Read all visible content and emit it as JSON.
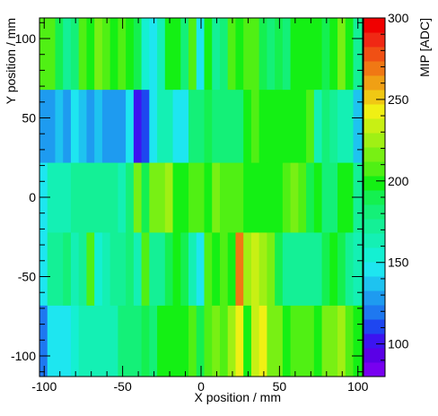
{
  "chart_data": {
    "type": "heatmap",
    "title": "",
    "xlabel": "X position / mm",
    "ylabel": "Y position / mm",
    "zlabel": "MIP [ADC]",
    "xlim": [
      -103,
      103
    ],
    "ylim": [
      -113,
      113
    ],
    "zlim": [
      80,
      300
    ],
    "x_ticks": [
      -100,
      -50,
      0,
      50,
      100
    ],
    "y_ticks": [
      -100,
      -50,
      0,
      50,
      100
    ],
    "z_ticks": [
      100,
      150,
      200,
      250,
      300
    ],
    "y_bands": [
      [
        -113,
        -68
      ],
      [
        -68,
        -22
      ],
      [
        -22,
        22
      ],
      [
        22,
        68
      ],
      [
        68,
        113
      ]
    ],
    "x_edges": [
      -103,
      -98,
      -93,
      -88,
      -83,
      -78,
      -73,
      -68,
      -63,
      -58,
      -53,
      -48,
      -43,
      -38,
      -33,
      -28,
      -23,
      -18,
      -13,
      -8,
      -3,
      2,
      7,
      12,
      17,
      22,
      27,
      32,
      37,
      42,
      47,
      52,
      57,
      62,
      67,
      72,
      77,
      82,
      87,
      92,
      97,
      103
    ],
    "palette": [
      "#7800f0",
      "#5a00e6",
      "#3c14f0",
      "#1e46f0",
      "#1e78f0",
      "#1e9bf0",
      "#1ec3f0",
      "#1ee6f0",
      "#14f0d2",
      "#14f0b4",
      "#14f096",
      "#14f078",
      "#14f050",
      "#14f014",
      "#50f014",
      "#78f014",
      "#a0f014",
      "#c8f014",
      "#f0f014",
      "#f0c814",
      "#f0a014",
      "#f07814",
      "#f05014",
      "#f02814",
      "#f00000"
    ],
    "z": [
      [
        120,
        150,
        150,
        150,
        155,
        160,
        160,
        165,
        160,
        160,
        180,
        180,
        185,
        190,
        185,
        195,
        195,
        200,
        200,
        210,
        190,
        205,
        215,
        205,
        225,
        245,
        200,
        230,
        245,
        215,
        215,
        200,
        210,
        210,
        205,
        200,
        220,
        215,
        225,
        210,
        200
      ],
      [
        150,
        175,
        175,
        185,
        165,
        175,
        205,
        155,
        160,
        175,
        175,
        180,
        165,
        205,
        175,
        175,
        190,
        200,
        190,
        160,
        150,
        210,
        200,
        210,
        200,
        270,
        225,
        230,
        225,
        220,
        190,
        170,
        175,
        175,
        175,
        175,
        190,
        195,
        190,
        175,
        160
      ],
      [
        150,
        165,
        165,
        165,
        170,
        175,
        175,
        175,
        175,
        175,
        160,
        185,
        215,
        190,
        215,
        215,
        225,
        200,
        200,
        210,
        210,
        200,
        215,
        210,
        205,
        205,
        200,
        200,
        200,
        200,
        200,
        210,
        215,
        210,
        190,
        195,
        185,
        185,
        195,
        195,
        175
      ],
      [
        130,
        130,
        135,
        125,
        145,
        140,
        125,
        140,
        130,
        125,
        130,
        145,
        105,
        110,
        145,
        160,
        165,
        150,
        150,
        185,
        180,
        190,
        180,
        185,
        180,
        185,
        200,
        210,
        200,
        195,
        200,
        200,
        195,
        200,
        205,
        165,
        185,
        170,
        160,
        165,
        140
      ],
      [
        205,
        210,
        190,
        175,
        180,
        205,
        200,
        215,
        205,
        200,
        210,
        200,
        190,
        155,
        150,
        160,
        195,
        195,
        185,
        205,
        150,
        195,
        175,
        180,
        205,
        200,
        210,
        205,
        190,
        185,
        190,
        185,
        195,
        195,
        200,
        195,
        190,
        200,
        215,
        200,
        175
      ]
    ]
  }
}
